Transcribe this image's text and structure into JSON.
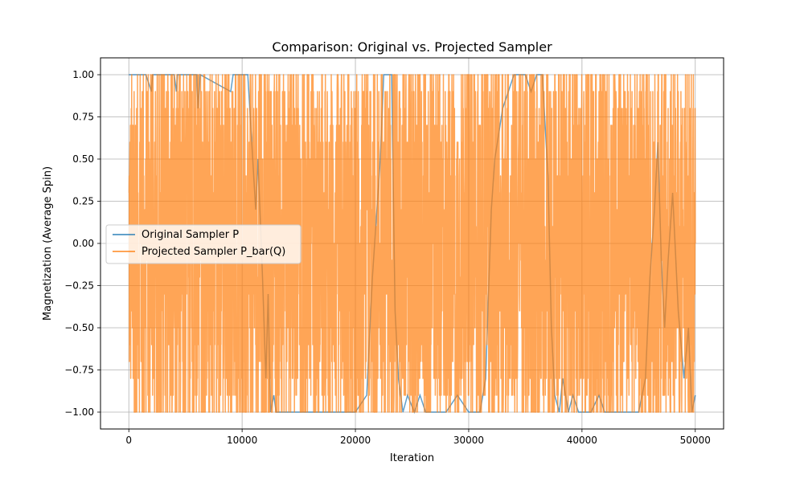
{
  "chart_data": {
    "type": "line",
    "title": "Comparison: Original vs. Projected Sampler",
    "xlabel": "Iteration",
    "ylabel": "Magnetization (Average Spin)",
    "xlim": [
      -2500,
      52500
    ],
    "ylim": [
      -1.1,
      1.1
    ],
    "x_ticks": [
      0,
      10000,
      20000,
      30000,
      40000,
      50000
    ],
    "x_tick_labels": [
      "0",
      "10000",
      "20000",
      "30000",
      "40000",
      "50000"
    ],
    "y_ticks": [
      1.0,
      0.75,
      0.5,
      0.25,
      0.0,
      -0.25,
      -0.5,
      -0.75,
      -1.0
    ],
    "y_tick_labels": [
      "1.00",
      "0.75",
      "0.50",
      "0.25",
      "0.00",
      "−0.25",
      "−0.50",
      "−0.75",
      "−1.00"
    ],
    "grid": true,
    "legend_position": "center-left",
    "series": [
      {
        "name": "Original Sampler P",
        "color": "#1f77b4",
        "opacity": 0.7,
        "x": [
          0,
          1500,
          2000,
          2100,
          4000,
          4200,
          4300,
          6000,
          6100,
          6300,
          9000,
          9200,
          10500,
          11200,
          11400,
          11800,
          12100,
          12300,
          12500,
          12800,
          13000,
          14000,
          16000,
          18000,
          20000,
          21000,
          21500,
          22200,
          22500,
          23200,
          23500,
          23800,
          24200,
          24600,
          25200,
          25700,
          26200,
          27000,
          28000,
          29000,
          30000,
          31000,
          31500,
          31800,
          32000,
          32300,
          33000,
          34000,
          35000,
          35500,
          36000,
          36500,
          37000,
          37300,
          37600,
          38000,
          38300,
          38800,
          39200,
          39700,
          40300,
          40800,
          41500,
          42000,
          43000,
          44000,
          45000,
          45600,
          46000,
          46400,
          46700,
          47000,
          47300,
          47600,
          48000,
          48500,
          49000,
          49400,
          49700,
          50000
        ],
        "y": [
          1.0,
          1.0,
          0.9,
          1.0,
          1.0,
          0.9,
          1.0,
          1.0,
          0.8,
          1.0,
          0.9,
          1.0,
          1.0,
          0.2,
          0.5,
          -0.2,
          -0.8,
          -0.3,
          -1.0,
          -0.9,
          -1.0,
          -1.0,
          -1.0,
          -1.0,
          -1.0,
          -0.9,
          -0.2,
          0.5,
          1.0,
          1.0,
          -0.4,
          -0.8,
          -1.0,
          -0.9,
          -1.0,
          -0.9,
          -1.0,
          -1.0,
          -1.0,
          -0.9,
          -1.0,
          -1.0,
          -0.8,
          -0.2,
          0.2,
          0.5,
          0.8,
          1.0,
          1.0,
          0.9,
          1.0,
          1.0,
          0.4,
          -0.5,
          -0.9,
          -1.0,
          -0.8,
          -1.0,
          -0.9,
          -1.0,
          -1.0,
          -1.0,
          -0.9,
          -1.0,
          -1.0,
          -1.0,
          -1.0,
          -0.8,
          -0.2,
          0.2,
          0.6,
          -0.1,
          -0.5,
          -0.1,
          0.3,
          -0.4,
          -0.8,
          -0.5,
          -1.0,
          -0.9
        ]
      },
      {
        "name": "Projected Sampler P_bar(Q)",
        "color": "#ff7f0e",
        "opacity": 0.7,
        "x_range": [
          0,
          50000
        ],
        "y_range": [
          -1.0,
          1.0
        ]
      }
    ]
  }
}
